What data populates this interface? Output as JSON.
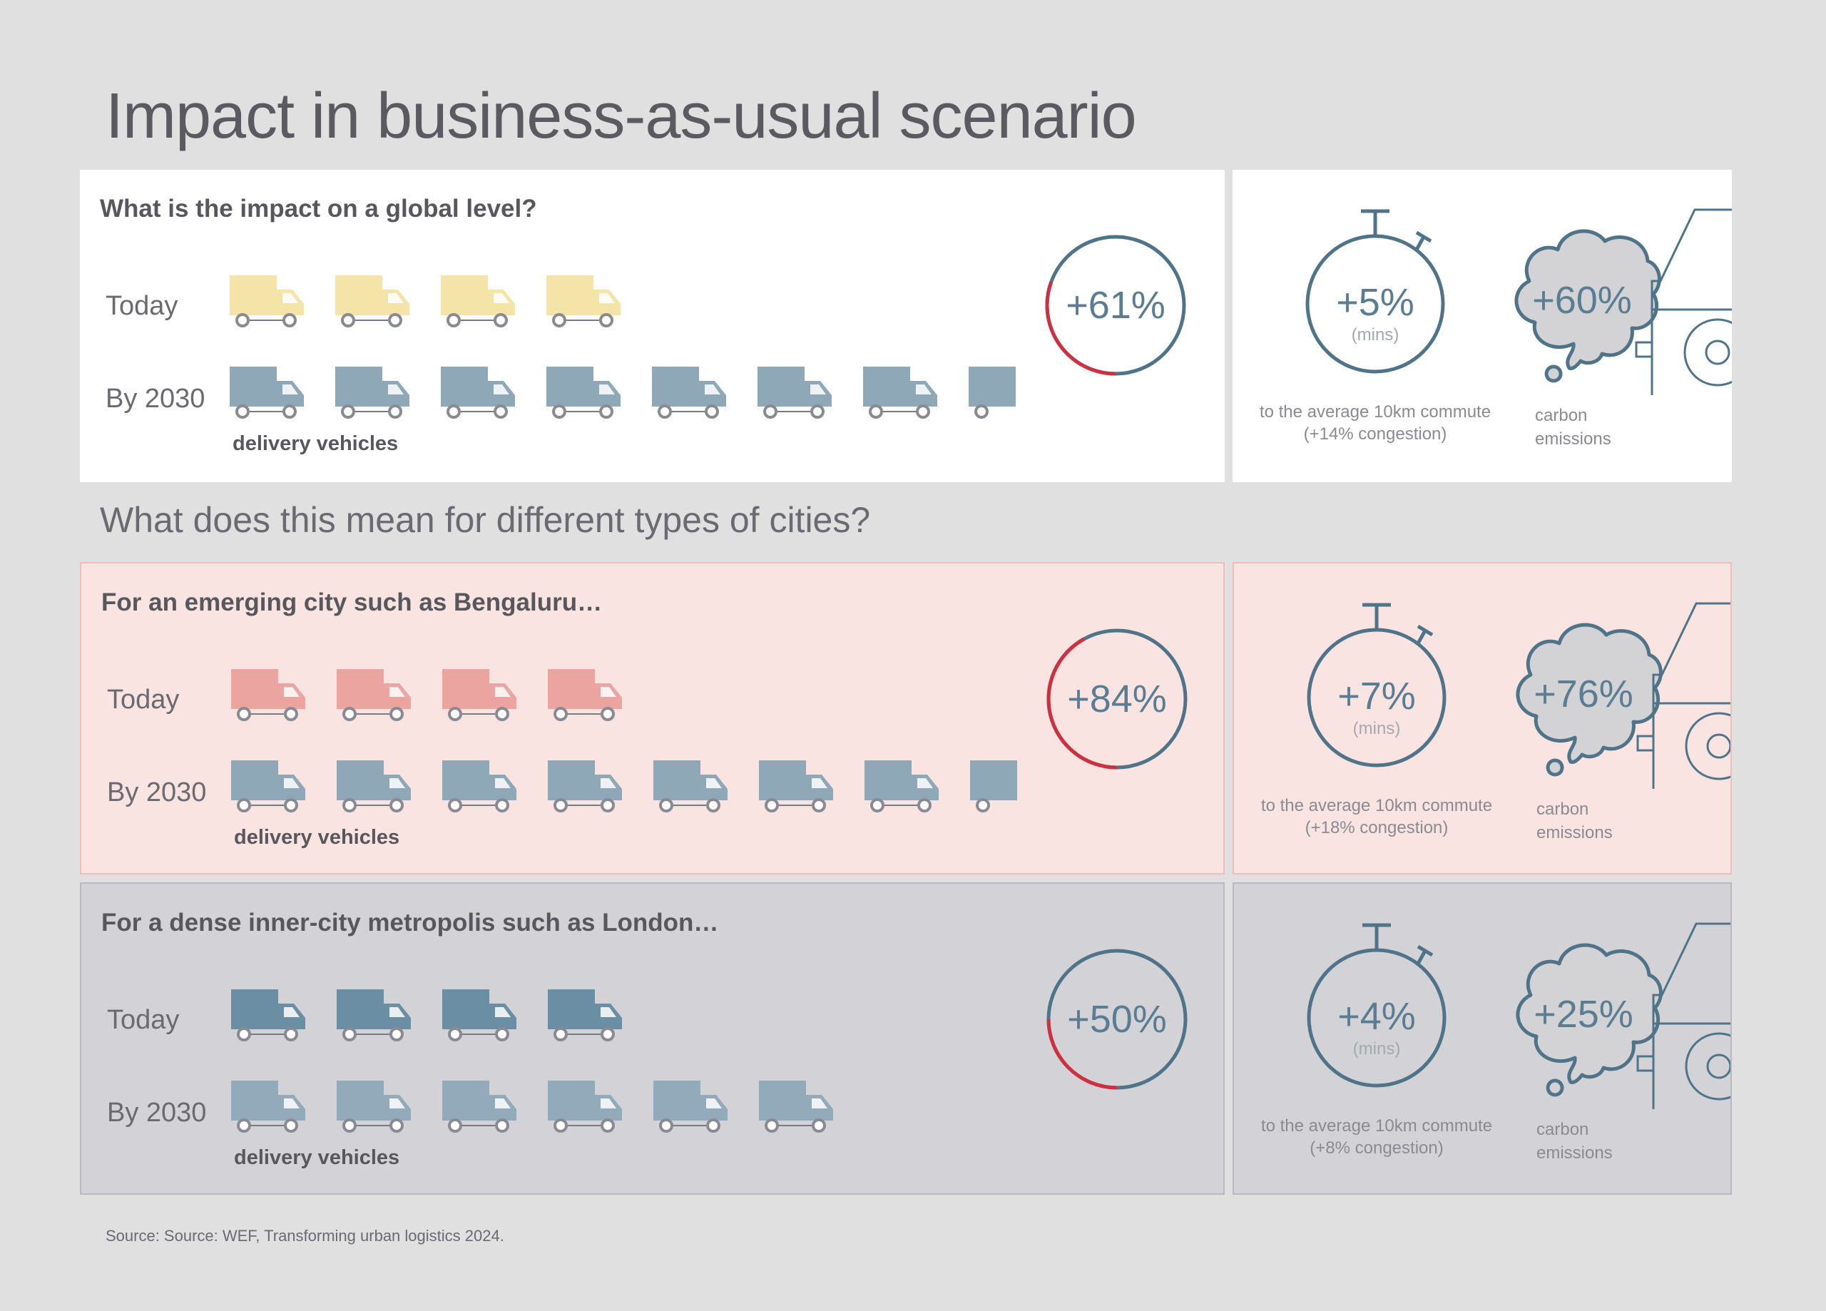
{
  "title": "Impact in business-as-usual scenario",
  "subheading": "What does this mean for different types of cities?",
  "source": "Source: Source: WEF, Transforming urban logistics 2024.",
  "colors": {
    "background": "#e1e0e1",
    "ring_blue": "#4f7489",
    "ring_red": "#cf2f3e",
    "truck_2030": "#8da7b7",
    "cloud_fill": "#d3d3d5"
  },
  "sections": [
    {
      "heading": "What is the impact on a global level?",
      "today_label": "Today",
      "by2030_label": "By 2030",
      "vehicles_label": "delivery vehicles",
      "today_vehicles": 4,
      "by2030_vehicles": 7.5,
      "today_color": "#f4e4a8",
      "by2030_color": "#8ea8b8",
      "vehicle_increase": "+61%",
      "vehicle_increase_fraction": 0.61,
      "commute_increase": "+5%",
      "commute_unit": "(mins)",
      "commute_caption": "to the average 10km commute",
      "congestion": "(+14% congestion)",
      "emissions_increase": "+60%",
      "emissions_caption_1": "carbon",
      "emissions_caption_2": "emissions"
    },
    {
      "heading": "For an emerging city such as Bengaluru…",
      "today_label": "Today",
      "by2030_label": "By 2030",
      "vehicles_label": "delivery vehicles",
      "today_vehicles": 4,
      "by2030_vehicles": 7.5,
      "today_color": "#eca4a1",
      "by2030_color": "#8ea8b8",
      "vehicle_increase": "+84%",
      "vehicle_increase_fraction": 0.84,
      "commute_increase": "+7%",
      "commute_unit": "(mins)",
      "commute_caption": "to the average 10km commute",
      "congestion": "(+18% congestion)",
      "emissions_increase": "+76%",
      "emissions_caption_1": "carbon",
      "emissions_caption_2": "emissions"
    },
    {
      "heading": "For a dense inner-city metropolis such as London…",
      "today_label": "Today",
      "by2030_label": "By 2030",
      "vehicles_label": "delivery vehicles",
      "today_vehicles": 4,
      "by2030_vehicles": 6,
      "today_color": "#6a8fa4",
      "by2030_color": "#92aab9",
      "vehicle_increase": "+50%",
      "vehicle_increase_fraction": 0.5,
      "commute_increase": "+4%",
      "commute_unit": "(mins)",
      "commute_caption": "to the average 10km commute",
      "congestion": "(+8% congestion)",
      "emissions_increase": "+25%",
      "emissions_caption_1": "carbon",
      "emissions_caption_2": "emissions"
    }
  ]
}
